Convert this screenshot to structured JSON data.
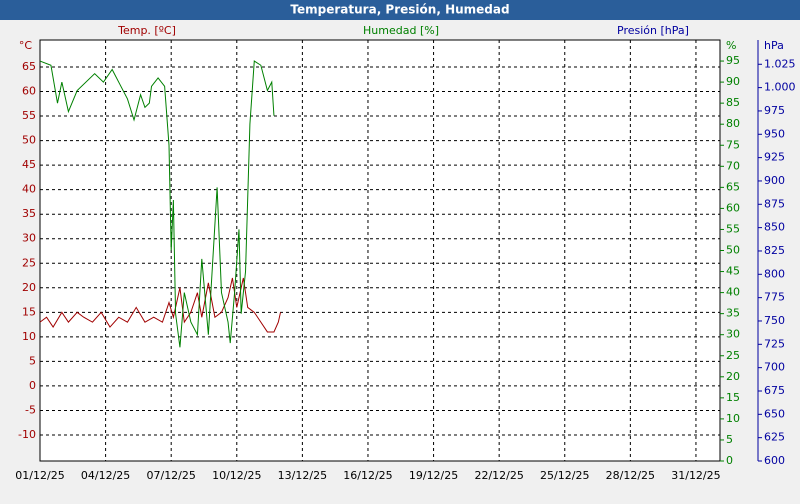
{
  "chart_data": {
    "type": "line",
    "title": "Temperatura, Presión, Humedad",
    "y_label": "°C",
    "y2_label": "%",
    "y3_label": "hPa",
    "xlim": [
      1,
      32.1
    ],
    "xticks": [
      {
        "value": 1,
        "label": "01/12/25"
      },
      {
        "value": 4,
        "label": "04/12/25"
      },
      {
        "value": 7,
        "label": "07/12/25"
      },
      {
        "value": 10,
        "label": "10/12/25"
      },
      {
        "value": 13,
        "label": "13/12/25"
      },
      {
        "value": 16,
        "label": "16/12/25"
      },
      {
        "value": 19,
        "label": "19/12/25"
      },
      {
        "value": 22,
        "label": "22/12/25"
      },
      {
        "value": 25,
        "label": "25/12/25"
      },
      {
        "value": 28,
        "label": "28/12/25"
      },
      {
        "value": 31,
        "label": "31/12/25"
      }
    ],
    "ylim": [
      -15.3,
      70.5
    ],
    "yticks": [
      -10,
      -5,
      0,
      5,
      10,
      15,
      20,
      25,
      30,
      35,
      40,
      45,
      50,
      55,
      60,
      65
    ],
    "y2lim": [
      0,
      100
    ],
    "y2ticks": [
      0,
      5,
      10,
      15,
      20,
      25,
      30,
      35,
      40,
      45,
      50,
      55,
      60,
      65,
      70,
      75,
      80,
      85,
      90,
      95
    ],
    "y3lim": [
      600,
      1051
    ],
    "y3ticks": [
      600,
      625,
      650,
      675,
      700,
      725,
      750,
      775,
      800,
      825,
      850,
      875,
      900,
      925,
      950,
      975,
      {
        "value": 1000,
        "label": "1.000"
      },
      {
        "value": 1025,
        "label": "1.025"
      }
    ],
    "grid": true,
    "series": [
      {
        "name": "Temp. [ºC]",
        "color": "#a00000",
        "axis": "y",
        "x": [
          1,
          1.3,
          1.6,
          2,
          2.3,
          2.7,
          3,
          3.4,
          3.8,
          4.2,
          4.6,
          5,
          5.4,
          5.8,
          6.2,
          6.6,
          6.9,
          7.1,
          7.4,
          7.6,
          7.9,
          8.2,
          8.4,
          8.7,
          9,
          9.3,
          9.6,
          9.8,
          10,
          10.3,
          10.5,
          10.8,
          11.1,
          11.4,
          11.7,
          11.9,
          12
        ],
        "values": [
          13,
          14,
          12,
          15,
          13,
          15,
          14,
          13,
          15,
          12,
          14,
          13,
          16,
          13,
          14,
          13,
          17,
          14,
          20,
          13,
          15,
          19,
          14,
          21,
          14,
          15,
          18,
          22,
          16,
          22,
          16,
          15,
          13,
          11,
          11,
          13,
          15
        ]
      },
      {
        "name": "Humedad [%]",
        "color": "#008000",
        "axis": "y2",
        "x": [
          1,
          1.5,
          1.8,
          2,
          2.3,
          2.7,
          3.5,
          3.9,
          4.3,
          4.7,
          5,
          5.3,
          5.6,
          5.8,
          6,
          6.1,
          6.4,
          6.7,
          6.9,
          7,
          7.1,
          7.2,
          7.4,
          7.6,
          7.9,
          8.2,
          8.4,
          8.7,
          9.1,
          9.3,
          9.6,
          9.7,
          9.9,
          10.1,
          10.2,
          10.4,
          10.6,
          10.8,
          11.1,
          11.4,
          11.6,
          11.7
        ],
        "values": [
          95,
          94,
          85,
          90,
          83,
          88,
          92,
          90,
          93,
          89,
          86,
          81,
          87,
          84,
          85,
          89,
          91,
          89,
          75,
          50,
          62,
          35,
          27,
          40,
          33,
          30,
          48,
          30,
          65,
          40,
          33,
          28,
          40,
          55,
          35,
          45,
          80,
          95,
          94,
          88,
          90,
          82
        ]
      },
      {
        "name": "Presión [hPa]",
        "color": "#0000a0",
        "axis": "y3",
        "x": [],
        "values": []
      }
    ]
  }
}
